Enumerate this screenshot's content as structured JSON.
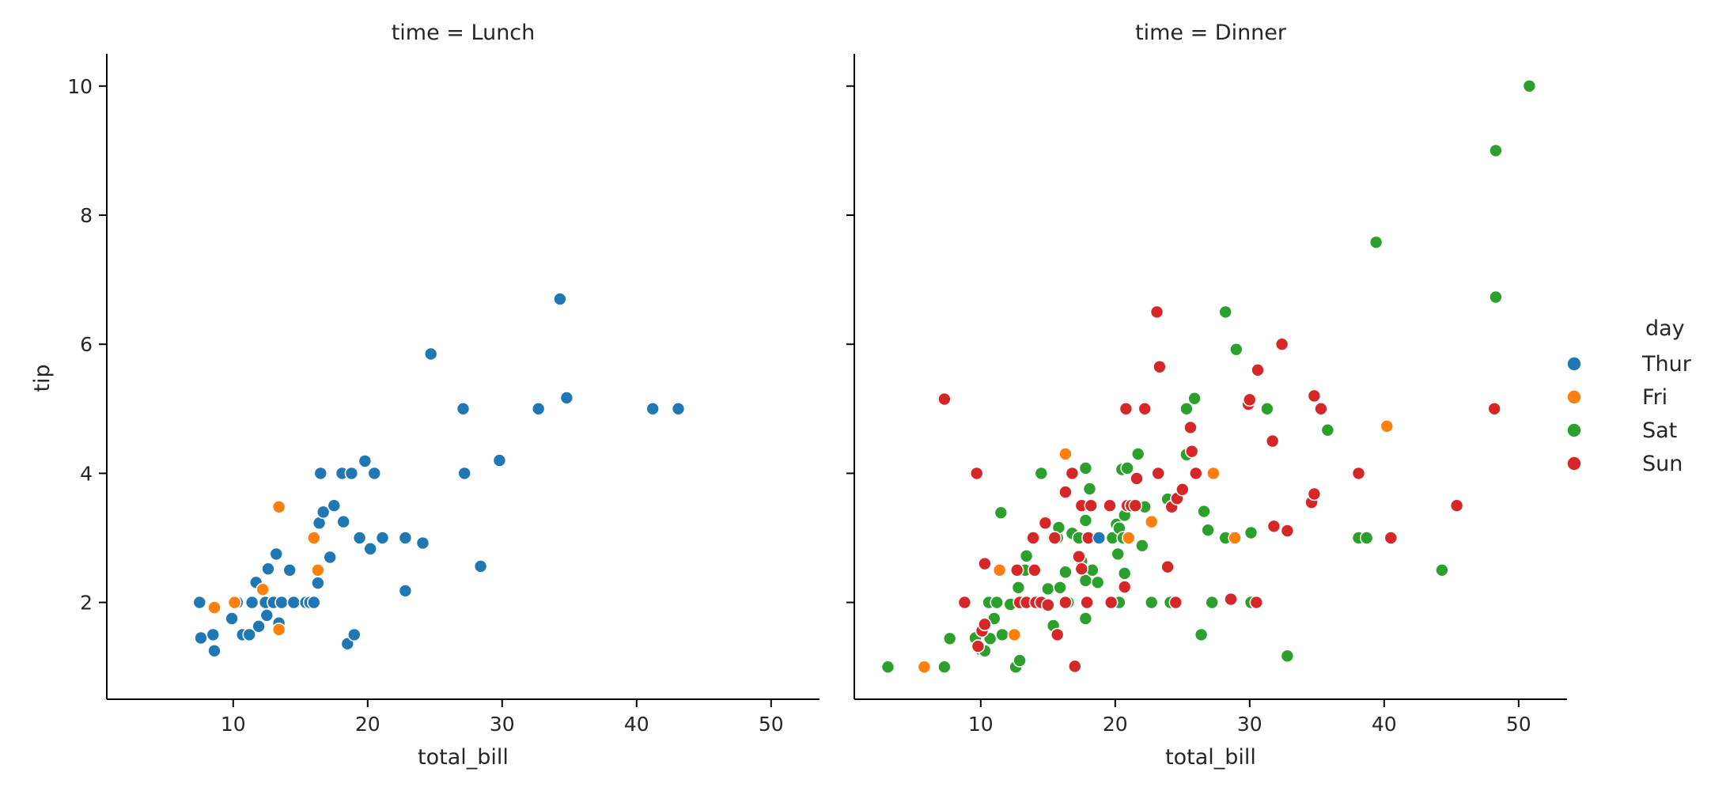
{
  "chart_data": {
    "type": "scatter",
    "ylabel": "tip",
    "ylim": [
      0.5,
      10.5
    ],
    "xlim": [
      0.6,
      53.6
    ],
    "xticks": [
      10,
      20,
      30,
      40,
      50
    ],
    "yticks": [
      2,
      4,
      6,
      8,
      10
    ],
    "legend": {
      "title": "day",
      "placement": "right",
      "entries": [
        {
          "name": "Thur",
          "color": "#1f77b4"
        },
        {
          "name": "Fri",
          "color": "#ff7f0e"
        },
        {
          "name": "Sat",
          "color": "#2ca02c"
        },
        {
          "name": "Sun",
          "color": "#d62728"
        }
      ]
    },
    "facets": [
      {
        "title": "time = Lunch",
        "xlabel": "total_bill",
        "series": [
          {
            "name": "Thur",
            "color": "#1f77b4",
            "points": [
              [
                7.5,
                2.0
              ],
              [
                7.6,
                1.45
              ],
              [
                8.5,
                1.5
              ],
              [
                8.6,
                1.25
              ],
              [
                9.9,
                1.75
              ],
              [
                10.3,
                2.0
              ],
              [
                10.7,
                1.5
              ],
              [
                11.2,
                1.5
              ],
              [
                11.4,
                2.0
              ],
              [
                11.7,
                2.31
              ],
              [
                11.9,
                1.63
              ],
              [
                12.4,
                2.0
              ],
              [
                12.5,
                1.8
              ],
              [
                12.6,
                2.52
              ],
              [
                13.0,
                2.0
              ],
              [
                13.2,
                2.75
              ],
              [
                13.4,
                1.68
              ],
              [
                13.6,
                2.0
              ],
              [
                14.2,
                2.5
              ],
              [
                14.5,
                2.0
              ],
              [
                15.4,
                2.0
              ],
              [
                15.7,
                2.0
              ],
              [
                16.0,
                2.0
              ],
              [
                16.3,
                2.3
              ],
              [
                16.4,
                3.23
              ],
              [
                16.5,
                4.0
              ],
              [
                16.7,
                3.4
              ],
              [
                17.2,
                2.7
              ],
              [
                17.5,
                3.5
              ],
              [
                18.1,
                4.0
              ],
              [
                18.2,
                3.25
              ],
              [
                18.5,
                1.36
              ],
              [
                18.8,
                4.0
              ],
              [
                19.0,
                1.5
              ],
              [
                19.4,
                3.0
              ],
              [
                19.8,
                4.19
              ],
              [
                20.2,
                2.83
              ],
              [
                20.5,
                4.0
              ],
              [
                21.1,
                3.0
              ],
              [
                22.8,
                2.18
              ],
              [
                22.8,
                3.0
              ],
              [
                24.1,
                2.92
              ],
              [
                24.7,
                5.85
              ],
              [
                27.1,
                5.0
              ],
              [
                27.2,
                4.0
              ],
              [
                28.4,
                2.56
              ],
              [
                29.8,
                4.2
              ],
              [
                32.7,
                5.0
              ],
              [
                34.3,
                6.7
              ],
              [
                34.8,
                5.17
              ],
              [
                41.2,
                5.0
              ],
              [
                43.1,
                5.0
              ]
            ]
          },
          {
            "name": "Fri",
            "color": "#ff7f0e",
            "points": [
              [
                8.6,
                1.92
              ],
              [
                10.1,
                2.0
              ],
              [
                12.2,
                2.2
              ],
              [
                13.4,
                3.48
              ],
              [
                13.4,
                1.58
              ],
              [
                16.0,
                3.0
              ],
              [
                16.3,
                2.5
              ]
            ]
          }
        ]
      },
      {
        "title": "time = Dinner",
        "xlabel": "total_bill",
        "series": [
          {
            "name": "Sat",
            "color": "#2ca02c",
            "points": [
              [
                3.1,
                1.0
              ],
              [
                7.3,
                1.0
              ],
              [
                7.7,
                1.44
              ],
              [
                9.6,
                1.45
              ],
              [
                9.8,
                1.32
              ],
              [
                10.0,
                1.27
              ],
              [
                10.3,
                1.25
              ],
              [
                10.4,
                1.66
              ],
              [
                10.6,
                2.0
              ],
              [
                10.7,
                1.44
              ],
              [
                11.0,
                1.75
              ],
              [
                11.2,
                2.0
              ],
              [
                11.5,
                3.39
              ],
              [
                11.6,
                1.5
              ],
              [
                12.2,
                1.97
              ],
              [
                12.6,
                1.0
              ],
              [
                12.8,
                2.23
              ],
              [
                12.9,
                1.1
              ],
              [
                13.3,
                2.5
              ],
              [
                13.4,
                2.72
              ],
              [
                14.0,
                3.0
              ],
              [
                14.5,
                4.0
              ],
              [
                15.0,
                2.21
              ],
              [
                15.4,
                3.0
              ],
              [
                15.4,
                1.64
              ],
              [
                15.7,
                3.0
              ],
              [
                15.8,
                3.16
              ],
              [
                15.9,
                2.23
              ],
              [
                16.3,
                2.47
              ],
              [
                16.5,
                2.0
              ],
              [
                16.8,
                3.07
              ],
              [
                17.3,
                3.0
              ],
              [
                17.5,
                2.64
              ],
              [
                17.8,
                3.27
              ],
              [
                17.8,
                4.08
              ],
              [
                17.8,
                2.34
              ],
              [
                17.8,
                1.75
              ],
              [
                18.1,
                3.76
              ],
              [
                18.3,
                2.5
              ],
              [
                18.7,
                2.31
              ],
              [
                19.8,
                3.0
              ],
              [
                20.1,
                3.21
              ],
              [
                20.2,
                2.75
              ],
              [
                20.3,
                3.15
              ],
              [
                20.3,
                2.0
              ],
              [
                20.5,
                4.06
              ],
              [
                20.6,
                3.0
              ],
              [
                20.7,
                2.45
              ],
              [
                20.7,
                3.35
              ],
              [
                20.9,
                4.08
              ],
              [
                21.7,
                4.3
              ],
              [
                22.0,
                2.88
              ],
              [
                22.2,
                3.48
              ],
              [
                22.7,
                2.0
              ],
              [
                23.9,
                3.6
              ],
              [
                24.1,
                2.0
              ],
              [
                25.3,
                5.0
              ],
              [
                25.3,
                4.29
              ],
              [
                25.9,
                5.16
              ],
              [
                26.4,
                1.5
              ],
              [
                26.6,
                3.41
              ],
              [
                26.9,
                3.12
              ],
              [
                27.2,
                2.0
              ],
              [
                28.2,
                6.5
              ],
              [
                28.2,
                3.0
              ],
              [
                29.0,
                5.92
              ],
              [
                30.1,
                3.08
              ],
              [
                30.1,
                2.0
              ],
              [
                31.3,
                5.0
              ],
              [
                32.8,
                1.17
              ],
              [
                35.8,
                4.67
              ],
              [
                38.1,
                3.0
              ],
              [
                38.7,
                3.0
              ],
              [
                39.4,
                7.58
              ],
              [
                44.3,
                2.5
              ],
              [
                48.3,
                9.0
              ],
              [
                48.3,
                6.73
              ],
              [
                50.8,
                10.0
              ]
            ]
          },
          {
            "name": "Sun",
            "color": "#d62728",
            "points": [
              [
                7.3,
                5.15
              ],
              [
                8.8,
                2.0
              ],
              [
                9.7,
                4.0
              ],
              [
                9.8,
                1.32
              ],
              [
                10.1,
                1.56
              ],
              [
                10.3,
                1.66
              ],
              [
                10.3,
                2.6
              ],
              [
                12.7,
                2.5
              ],
              [
                12.9,
                2.0
              ],
              [
                13.4,
                2.0
              ],
              [
                13.9,
                3.0
              ],
              [
                14.0,
                2.5
              ],
              [
                14.1,
                2.0
              ],
              [
                14.5,
                2.0
              ],
              [
                14.8,
                3.23
              ],
              [
                15.0,
                1.96
              ],
              [
                15.5,
                3.0
              ],
              [
                15.7,
                1.5
              ],
              [
                16.3,
                2.0
              ],
              [
                16.3,
                3.71
              ],
              [
                16.8,
                4.0
              ],
              [
                17.0,
                1.01
              ],
              [
                17.3,
                2.71
              ],
              [
                17.5,
                3.5
              ],
              [
                17.5,
                2.52
              ],
              [
                17.9,
                2.0
              ],
              [
                18.0,
                3.0
              ],
              [
                18.2,
                3.5
              ],
              [
                19.6,
                3.5
              ],
              [
                19.7,
                2.0
              ],
              [
                20.7,
                2.24
              ],
              [
                20.9,
                3.5
              ],
              [
                21.2,
                3.5
              ],
              [
                21.6,
                3.92
              ],
              [
                23.1,
                6.5
              ],
              [
                23.2,
                4.0
              ],
              [
                23.3,
                5.65
              ],
              [
                23.9,
                2.55
              ],
              [
                24.2,
                3.48
              ],
              [
                24.6,
                3.61
              ],
              [
                25.0,
                3.75
              ],
              [
                25.6,
                4.71
              ],
              [
                25.7,
                4.34
              ],
              [
                26.0,
                4.0
              ],
              [
                28.6,
                2.05
              ],
              [
                29.9,
                5.07
              ],
              [
                30.5,
                2.0
              ],
              [
                31.7,
                4.5
              ],
              [
                31.8,
                3.18
              ],
              [
                32.4,
                6.0
              ],
              [
                32.8,
                3.11
              ],
              [
                34.6,
                3.55
              ],
              [
                34.8,
                5.2
              ],
              [
                34.8,
                3.68
              ],
              [
                35.3,
                5.0
              ],
              [
                38.1,
                4.0
              ],
              [
                40.5,
                3.0
              ],
              [
                45.4,
                3.5
              ],
              [
                48.2,
                5.0
              ],
              [
                30.6,
                5.6
              ],
              [
                30.0,
                5.14
              ],
              [
                20.8,
                5.0
              ],
              [
                22.2,
                5.0
              ],
              [
                24.5,
                2.0
              ],
              [
                21.5,
                3.5
              ]
            ]
          },
          {
            "name": "Fri",
            "color": "#ff7f0e",
            "points": [
              [
                5.8,
                1.0
              ],
              [
                11.4,
                2.5
              ],
              [
                12.5,
                1.5
              ],
              [
                16.3,
                4.3
              ],
              [
                21.0,
                3.0
              ],
              [
                22.7,
                3.25
              ],
              [
                27.3,
                4.0
              ],
              [
                28.9,
                3.0
              ],
              [
                40.2,
                4.73
              ]
            ]
          },
          {
            "name": "Thur",
            "color": "#1f77b4",
            "points": [
              [
                18.8,
                3.0
              ]
            ]
          }
        ]
      }
    ]
  }
}
